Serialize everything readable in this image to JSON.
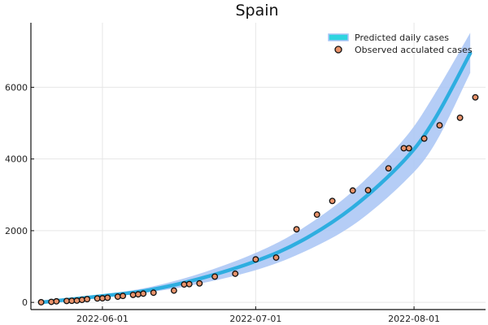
{
  "chart_data": {
    "type": "line",
    "title": "Spain",
    "xlabel": "",
    "ylabel": "",
    "x_axis_type": "date",
    "xlim": [
      "2022-05-18",
      "2022-08-15"
    ],
    "ylim": [
      -200,
      7800
    ],
    "x_ticks": [
      "2022-06-01",
      "2022-07-01",
      "2022-08-01"
    ],
    "y_ticks": [
      0,
      2000,
      4000,
      6000
    ],
    "grid": true,
    "legend_position": "top-right",
    "series": [
      {
        "name": "Predicted daily cases",
        "kind": "line_with_band",
        "color": "#2eaee0",
        "band_color": "#a8c4f5",
        "points": [
          {
            "x": "2022-05-20",
            "y": 0,
            "low": 0,
            "high": 10
          },
          {
            "x": "2022-06-01",
            "y": 180,
            "low": 150,
            "high": 220
          },
          {
            "x": "2022-06-10",
            "y": 340,
            "low": 280,
            "high": 420
          },
          {
            "x": "2022-06-20",
            "y": 660,
            "low": 520,
            "high": 800
          },
          {
            "x": "2022-07-01",
            "y": 1150,
            "low": 900,
            "high": 1380
          },
          {
            "x": "2022-07-10",
            "y": 1720,
            "low": 1380,
            "high": 2050
          },
          {
            "x": "2022-07-20",
            "y": 2650,
            "low": 2150,
            "high": 3100
          },
          {
            "x": "2022-07-30",
            "y": 3950,
            "low": 3350,
            "high": 4550
          },
          {
            "x": "2022-08-05",
            "y": 5100,
            "low": 4400,
            "high": 5800
          },
          {
            "x": "2022-08-12",
            "y": 6950,
            "low": 6400,
            "high": 7520
          }
        ]
      },
      {
        "name": "Observed acculated cases",
        "kind": "scatter",
        "fill": "#e8926a",
        "stroke": "#111111",
        "points": [
          {
            "x": "2022-05-20",
            "y": 5
          },
          {
            "x": "2022-05-22",
            "y": 15
          },
          {
            "x": "2022-05-23",
            "y": 30
          },
          {
            "x": "2022-05-25",
            "y": 40
          },
          {
            "x": "2022-05-26",
            "y": 45
          },
          {
            "x": "2022-05-27",
            "y": 50
          },
          {
            "x": "2022-05-28",
            "y": 70
          },
          {
            "x": "2022-05-29",
            "y": 90
          },
          {
            "x": "2022-05-31",
            "y": 110
          },
          {
            "x": "2022-06-01",
            "y": 115
          },
          {
            "x": "2022-06-02",
            "y": 130
          },
          {
            "x": "2022-06-04",
            "y": 160
          },
          {
            "x": "2022-06-05",
            "y": 180
          },
          {
            "x": "2022-06-07",
            "y": 210
          },
          {
            "x": "2022-06-08",
            "y": 225
          },
          {
            "x": "2022-06-09",
            "y": 245
          },
          {
            "x": "2022-06-11",
            "y": 270
          },
          {
            "x": "2022-06-15",
            "y": 330
          },
          {
            "x": "2022-06-17",
            "y": 500
          },
          {
            "x": "2022-06-18",
            "y": 510
          },
          {
            "x": "2022-06-20",
            "y": 530
          },
          {
            "x": "2022-06-23",
            "y": 720
          },
          {
            "x": "2022-06-27",
            "y": 800
          },
          {
            "x": "2022-07-01",
            "y": 1200
          },
          {
            "x": "2022-07-05",
            "y": 1250
          },
          {
            "x": "2022-07-09",
            "y": 2040
          },
          {
            "x": "2022-07-13",
            "y": 2450
          },
          {
            "x": "2022-07-16",
            "y": 2830
          },
          {
            "x": "2022-07-20",
            "y": 3120
          },
          {
            "x": "2022-07-23",
            "y": 3130
          },
          {
            "x": "2022-07-27",
            "y": 3740
          },
          {
            "x": "2022-07-30",
            "y": 4300
          },
          {
            "x": "2022-07-31",
            "y": 4300
          },
          {
            "x": "2022-08-03",
            "y": 4570
          },
          {
            "x": "2022-08-06",
            "y": 4940
          },
          {
            "x": "2022-08-10",
            "y": 5150
          },
          {
            "x": "2022-08-13",
            "y": 5720
          }
        ]
      }
    ]
  }
}
